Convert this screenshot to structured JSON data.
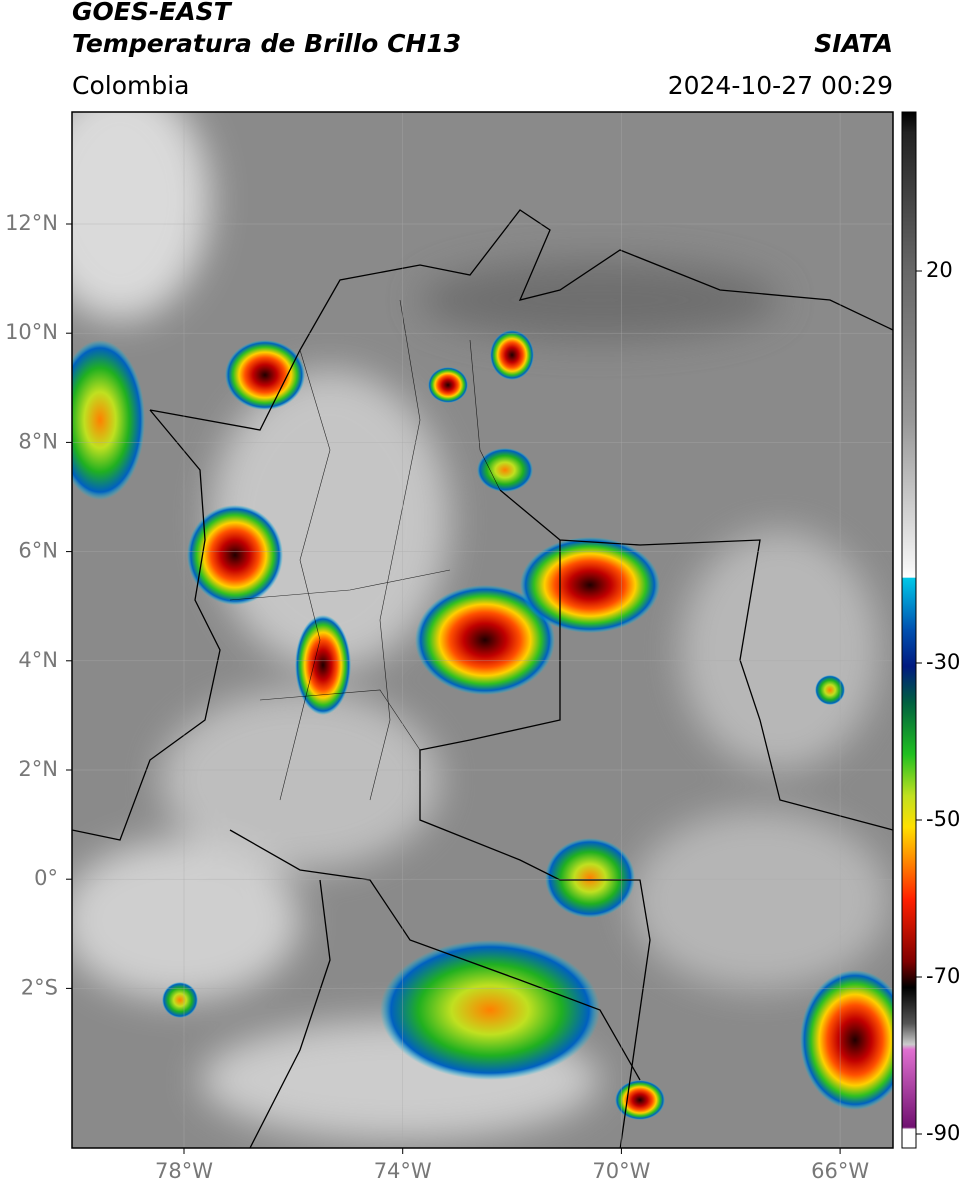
{
  "header": {
    "title": "GOES-EAST",
    "subtitle": "Temperatura de Brillo CH13",
    "source": "SIATA",
    "region": "Colombia",
    "timestamp": "2024-10-27 00:29"
  },
  "map": {
    "lat_labels": [
      "12°N",
      "10°N",
      "8°N",
      "6°N",
      "4°N",
      "2°N",
      "0°",
      "2°S"
    ],
    "lon_labels": [
      "78°W",
      "74°W",
      "70°W",
      "66°W"
    ]
  },
  "colorbar": {
    "labels": [
      "20",
      "-30",
      "-50",
      "-70",
      "-90"
    ]
  }
}
